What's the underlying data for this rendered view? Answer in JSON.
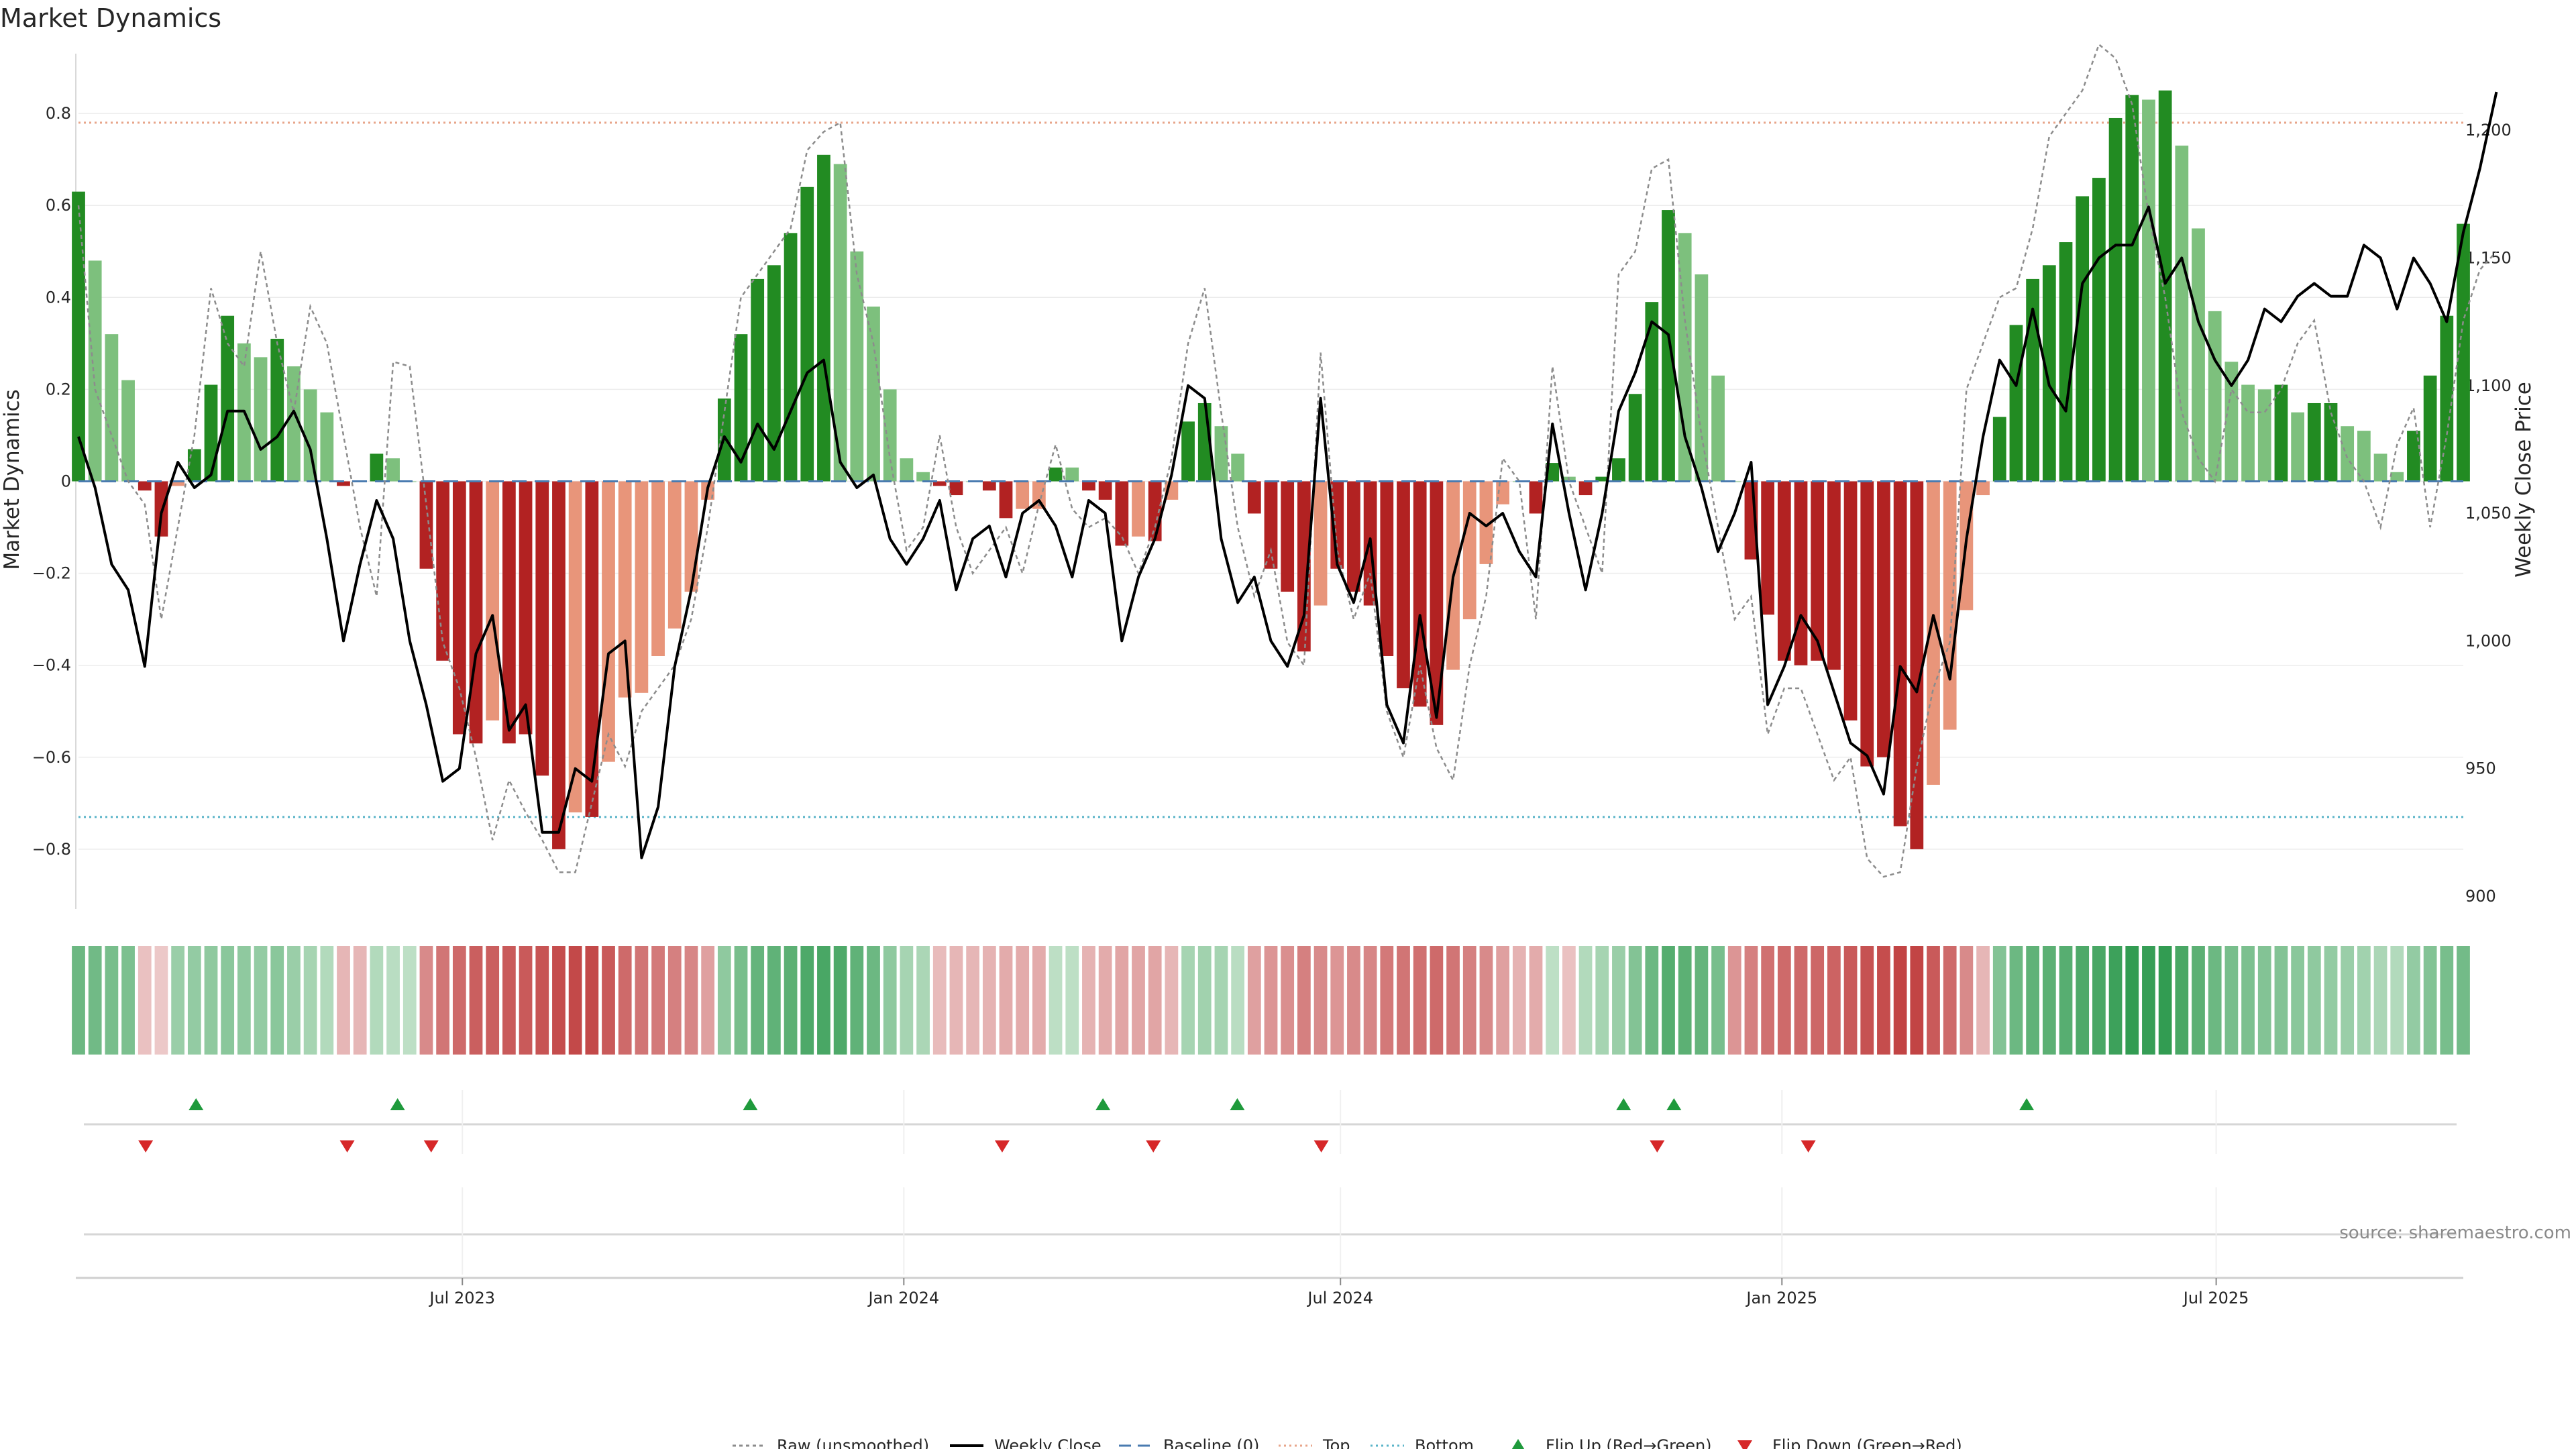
{
  "chart_data": {
    "type": "bar",
    "title": "Market Dynamics",
    "ylabel_left": "Market Dynamics",
    "ylabel_right": "Weekly Close Price",
    "source_text": "source: sharemaestro.com",
    "left_ylim": [
      -0.93,
      0.93
    ],
    "right_ylim": [
      895,
      1230
    ],
    "left_ticks": [
      "0.8",
      "0.6",
      "0.4",
      "0.2",
      "0",
      "−0.2",
      "−0.4",
      "−0.6",
      "−0.8"
    ],
    "right_ticks": [
      "1,200",
      "1,150",
      "1,100",
      "1,050",
      "1,000",
      "950",
      "900"
    ],
    "x_ticks": [
      {
        "label": "Jul 2023",
        "date": "2023-07-01"
      },
      {
        "label": "Jan 2024",
        "date": "2024-01-01"
      },
      {
        "label": "Jul 2024",
        "date": "2024-07-01"
      },
      {
        "label": "Jan 2025",
        "date": "2025-01-01"
      },
      {
        "label": "Jul 2025",
        "date": "2025-07-01"
      }
    ],
    "start_date": "2023-01-22",
    "end_date": "2025-10-12",
    "top_level": 0.78,
    "bottom_level": -0.73,
    "colors": {
      "strong_up": "#228b22",
      "weak_up": "#7dc07d",
      "strong_down": "#b22222",
      "weak_down": "#e8957a",
      "raw": "#8c8c8c",
      "close": "#000000",
      "baseline": "#4a7bb0",
      "top": "#e8a58a",
      "bottom": "#5ab4c8",
      "flip_up": "#1f9a3c",
      "flip_down": "#d62728"
    },
    "bars": [
      {
        "v": 0.63,
        "s": 1
      },
      {
        "v": 0.48,
        "s": 0
      },
      {
        "v": 0.32,
        "s": 0
      },
      {
        "v": 0.22,
        "s": 0
      },
      {
        "v": -0.02,
        "s": 1
      },
      {
        "v": -0.12,
        "s": 1
      },
      {
        "v": -0.01,
        "s": 0
      },
      {
        "v": 0.07,
        "s": 1
      },
      {
        "v": 0.21,
        "s": 1
      },
      {
        "v": 0.36,
        "s": 1
      },
      {
        "v": 0.3,
        "s": 0
      },
      {
        "v": 0.27,
        "s": 0
      },
      {
        "v": 0.31,
        "s": 1
      },
      {
        "v": 0.25,
        "s": 0
      },
      {
        "v": 0.2,
        "s": 0
      },
      {
        "v": 0.15,
        "s": 0
      },
      {
        "v": -0.01,
        "s": 1
      },
      {
        "v": 0.0,
        "s": 0
      },
      {
        "v": 0.06,
        "s": 1
      },
      {
        "v": 0.05,
        "s": 0
      },
      {
        "v": 0.0,
        "s": 0
      },
      {
        "v": -0.19,
        "s": 1
      },
      {
        "v": -0.39,
        "s": 1
      },
      {
        "v": -0.55,
        "s": 1
      },
      {
        "v": -0.57,
        "s": 1
      },
      {
        "v": -0.52,
        "s": 0
      },
      {
        "v": -0.57,
        "s": 1
      },
      {
        "v": -0.55,
        "s": 1
      },
      {
        "v": -0.64,
        "s": 1
      },
      {
        "v": -0.8,
        "s": 1
      },
      {
        "v": -0.72,
        "s": 0
      },
      {
        "v": -0.73,
        "s": 1
      },
      {
        "v": -0.61,
        "s": 0
      },
      {
        "v": -0.47,
        "s": 0
      },
      {
        "v": -0.46,
        "s": 0
      },
      {
        "v": -0.38,
        "s": 0
      },
      {
        "v": -0.32,
        "s": 0
      },
      {
        "v": -0.24,
        "s": 0
      },
      {
        "v": -0.04,
        "s": 0
      },
      {
        "v": 0.18,
        "s": 1
      },
      {
        "v": 0.32,
        "s": 1
      },
      {
        "v": 0.44,
        "s": 1
      },
      {
        "v": 0.47,
        "s": 1
      },
      {
        "v": 0.54,
        "s": 1
      },
      {
        "v": 0.64,
        "s": 1
      },
      {
        "v": 0.71,
        "s": 1
      },
      {
        "v": 0.69,
        "s": 0
      },
      {
        "v": 0.5,
        "s": 0
      },
      {
        "v": 0.38,
        "s": 0
      },
      {
        "v": 0.2,
        "s": 0
      },
      {
        "v": 0.05,
        "s": 0
      },
      {
        "v": 0.02,
        "s": 0
      },
      {
        "v": -0.01,
        "s": 1
      },
      {
        "v": -0.03,
        "s": 1
      },
      {
        "v": 0.0,
        "s": 0
      },
      {
        "v": -0.02,
        "s": 1
      },
      {
        "v": -0.08,
        "s": 1
      },
      {
        "v": -0.06,
        "s": 0
      },
      {
        "v": -0.06,
        "s": 0
      },
      {
        "v": 0.03,
        "s": 1
      },
      {
        "v": 0.03,
        "s": 0
      },
      {
        "v": -0.02,
        "s": 1
      },
      {
        "v": -0.04,
        "s": 1
      },
      {
        "v": -0.14,
        "s": 1
      },
      {
        "v": -0.12,
        "s": 0
      },
      {
        "v": -0.13,
        "s": 1
      },
      {
        "v": -0.04,
        "s": 0
      },
      {
        "v": 0.13,
        "s": 1
      },
      {
        "v": 0.17,
        "s": 1
      },
      {
        "v": 0.12,
        "s": 0
      },
      {
        "v": 0.06,
        "s": 0
      },
      {
        "v": -0.07,
        "s": 1
      },
      {
        "v": -0.19,
        "s": 1
      },
      {
        "v": -0.24,
        "s": 1
      },
      {
        "v": -0.37,
        "s": 1
      },
      {
        "v": -0.27,
        "s": 0
      },
      {
        "v": -0.19,
        "s": 1
      },
      {
        "v": -0.24,
        "s": 1
      },
      {
        "v": -0.27,
        "s": 1
      },
      {
        "v": -0.38,
        "s": 1
      },
      {
        "v": -0.45,
        "s": 1
      },
      {
        "v": -0.49,
        "s": 1
      },
      {
        "v": -0.53,
        "s": 1
      },
      {
        "v": -0.41,
        "s": 0
      },
      {
        "v": -0.3,
        "s": 0
      },
      {
        "v": -0.18,
        "s": 0
      },
      {
        "v": -0.05,
        "s": 0
      },
      {
        "v": 0.0,
        "s": 0
      },
      {
        "v": -0.07,
        "s": 1
      },
      {
        "v": 0.04,
        "s": 1
      },
      {
        "v": 0.01,
        "s": 0
      },
      {
        "v": -0.03,
        "s": 1
      },
      {
        "v": 0.01,
        "s": 1
      },
      {
        "v": 0.05,
        "s": 1
      },
      {
        "v": 0.19,
        "s": 1
      },
      {
        "v": 0.39,
        "s": 1
      },
      {
        "v": 0.59,
        "s": 1
      },
      {
        "v": 0.54,
        "s": 0
      },
      {
        "v": 0.45,
        "s": 0
      },
      {
        "v": 0.23,
        "s": 0
      },
      {
        "v": 0.0,
        "s": 0
      },
      {
        "v": -0.17,
        "s": 1
      },
      {
        "v": -0.29,
        "s": 1
      },
      {
        "v": -0.39,
        "s": 1
      },
      {
        "v": -0.4,
        "s": 1
      },
      {
        "v": -0.39,
        "s": 1
      },
      {
        "v": -0.41,
        "s": 1
      },
      {
        "v": -0.52,
        "s": 1
      },
      {
        "v": -0.62,
        "s": 1
      },
      {
        "v": -0.6,
        "s": 1
      },
      {
        "v": -0.75,
        "s": 1
      },
      {
        "v": -0.8,
        "s": 1
      },
      {
        "v": -0.66,
        "s": 0
      },
      {
        "v": -0.54,
        "s": 0
      },
      {
        "v": -0.28,
        "s": 0
      },
      {
        "v": -0.03,
        "s": 0
      },
      {
        "v": 0.14,
        "s": 1
      },
      {
        "v": 0.34,
        "s": 1
      },
      {
        "v": 0.44,
        "s": 1
      },
      {
        "v": 0.47,
        "s": 1
      },
      {
        "v": 0.52,
        "s": 1
      },
      {
        "v": 0.62,
        "s": 1
      },
      {
        "v": 0.66,
        "s": 1
      },
      {
        "v": 0.79,
        "s": 1
      },
      {
        "v": 0.84,
        "s": 1
      },
      {
        "v": 0.83,
        "s": 0
      },
      {
        "v": 0.85,
        "s": 1
      },
      {
        "v": 0.73,
        "s": 0
      },
      {
        "v": 0.55,
        "s": 0
      },
      {
        "v": 0.37,
        "s": 0
      },
      {
        "v": 0.26,
        "s": 0
      },
      {
        "v": 0.21,
        "s": 0
      },
      {
        "v": 0.2,
        "s": 0
      },
      {
        "v": 0.21,
        "s": 1
      },
      {
        "v": 0.15,
        "s": 0
      },
      {
        "v": 0.17,
        "s": 1
      },
      {
        "v": 0.17,
        "s": 1
      },
      {
        "v": 0.12,
        "s": 0
      },
      {
        "v": 0.11,
        "s": 0
      },
      {
        "v": 0.06,
        "s": 0
      },
      {
        "v": 0.02,
        "s": 0
      },
      {
        "v": 0.11,
        "s": 1
      },
      {
        "v": 0.23,
        "s": 1
      },
      {
        "v": 0.36,
        "s": 1
      },
      {
        "v": 0.56,
        "s": 1
      }
    ],
    "close": [
      1080,
      1060,
      1030,
      1020,
      990,
      1050,
      1070,
      1060,
      1065,
      1090,
      1090,
      1075,
      1080,
      1090,
      1075,
      1040,
      1000,
      1030,
      1055,
      1040,
      1000,
      975,
      945,
      950,
      995,
      1010,
      965,
      975,
      925,
      925,
      950,
      945,
      995,
      1000,
      915,
      935,
      990,
      1020,
      1060,
      1080,
      1070,
      1085,
      1075,
      1090,
      1105,
      1110,
      1070,
      1060,
      1065,
      1040,
      1030,
      1040,
      1055,
      1020,
      1040,
      1045,
      1025,
      1050,
      1055,
      1045,
      1025,
      1055,
      1050,
      1000,
      1025,
      1040,
      1065,
      1100,
      1095,
      1040,
      1015,
      1025,
      1000,
      990,
      1010,
      1095,
      1030,
      1015,
      1040,
      975,
      960,
      1010,
      970,
      1025,
      1050,
      1045,
      1050,
      1035,
      1025,
      1085,
      1050,
      1020,
      1050,
      1090,
      1105,
      1125,
      1120,
      1080,
      1060,
      1035,
      1050,
      1070,
      975,
      990,
      1010,
      1000,
      980,
      960,
      955,
      940,
      990,
      980,
      1010,
      985,
      1040,
      1080,
      1110,
      1100,
      1130,
      1100,
      1090,
      1140,
      1150,
      1155,
      1155,
      1170,
      1140,
      1150,
      1125,
      1110,
      1100,
      1110,
      1130,
      1125,
      1135,
      1140,
      1135,
      1135,
      1155,
      1150,
      1130,
      1150,
      1140,
      1125,
      1160,
      1185,
      1215
    ],
    "raw": [
      0.6,
      0.2,
      0.1,
      0.0,
      -0.05,
      -0.3,
      -0.1,
      0.1,
      0.42,
      0.3,
      0.25,
      0.5,
      0.3,
      0.15,
      0.38,
      0.3,
      0.1,
      -0.1,
      -0.25,
      0.26,
      0.25,
      -0.05,
      -0.35,
      -0.45,
      -0.6,
      -0.78,
      -0.65,
      -0.72,
      -0.78,
      -0.85,
      -0.85,
      -0.7,
      -0.55,
      -0.62,
      -0.5,
      -0.45,
      -0.4,
      -0.3,
      -0.1,
      0.15,
      0.4,
      0.45,
      0.5,
      0.55,
      0.72,
      0.76,
      0.78,
      0.45,
      0.3,
      0.05,
      -0.15,
      -0.1,
      0.1,
      -0.1,
      -0.2,
      -0.15,
      -0.1,
      -0.2,
      -0.05,
      0.08,
      -0.06,
      -0.1,
      -0.08,
      -0.12,
      -0.2,
      -0.1,
      0.05,
      0.3,
      0.42,
      0.15,
      -0.1,
      -0.25,
      -0.15,
      -0.35,
      -0.4,
      0.28,
      -0.15,
      -0.3,
      -0.2,
      -0.5,
      -0.6,
      -0.4,
      -0.58,
      -0.65,
      -0.4,
      -0.25,
      0.05,
      0.0,
      -0.3,
      0.25,
      0.0,
      -0.1,
      -0.2,
      0.45,
      0.5,
      0.68,
      0.7,
      0.35,
      0.1,
      -0.1,
      -0.3,
      -0.25,
      -0.55,
      -0.45,
      -0.45,
      -0.55,
      -0.65,
      -0.6,
      -0.82,
      -0.86,
      -0.85,
      -0.62,
      -0.45,
      -0.35,
      0.2,
      0.3,
      0.4,
      0.42,
      0.55,
      0.75,
      0.8,
      0.85,
      0.95,
      0.92,
      0.82,
      0.58,
      0.4,
      0.15,
      0.05,
      0.0,
      0.2,
      0.15,
      0.15,
      0.2,
      0.3,
      0.35,
      0.15,
      0.05,
      0.0,
      -0.1,
      0.08,
      0.16,
      -0.1,
      0.1,
      0.35,
      0.46,
      0.5
    ],
    "heat": [
      0.55,
      0.53,
      0.5,
      0.48,
      -0.15,
      -0.12,
      0.35,
      0.38,
      0.4,
      0.42,
      0.4,
      0.38,
      0.42,
      0.35,
      0.3,
      0.25,
      -0.2,
      -0.2,
      0.25,
      0.22,
      0.2,
      -0.4,
      -0.5,
      -0.55,
      -0.6,
      -0.6,
      -0.62,
      -0.62,
      -0.65,
      -0.68,
      -0.7,
      -0.7,
      -0.62,
      -0.55,
      -0.5,
      -0.48,
      -0.45,
      -0.42,
      -0.3,
      0.4,
      0.5,
      0.58,
      0.6,
      0.62,
      0.68,
      0.7,
      0.68,
      0.6,
      0.55,
      0.4,
      0.3,
      0.28,
      -0.18,
      -0.2,
      -0.2,
      -0.22,
      -0.25,
      -0.25,
      -0.25,
      0.2,
      0.2,
      -0.22,
      -0.25,
      -0.28,
      -0.28,
      -0.28,
      -0.2,
      0.3,
      0.32,
      0.3,
      0.22,
      -0.3,
      -0.35,
      -0.38,
      -0.45,
      -0.4,
      -0.35,
      -0.4,
      -0.42,
      -0.48,
      -0.5,
      -0.52,
      -0.55,
      -0.5,
      -0.45,
      -0.4,
      -0.3,
      -0.22,
      -0.25,
      0.2,
      -0.15,
      0.25,
      0.3,
      0.35,
      0.45,
      0.55,
      0.65,
      0.62,
      0.58,
      0.5,
      -0.35,
      -0.45,
      -0.52,
      -0.55,
      -0.55,
      -0.56,
      -0.58,
      -0.62,
      -0.66,
      -0.68,
      -0.72,
      -0.72,
      -0.62,
      -0.55,
      -0.4,
      -0.2,
      0.45,
      0.55,
      0.6,
      0.62,
      0.64,
      0.68,
      0.7,
      0.75,
      0.8,
      0.78,
      0.8,
      0.7,
      0.62,
      0.55,
      0.5,
      0.48,
      0.45,
      0.45,
      0.42,
      0.4,
      0.38,
      0.35,
      0.32,
      0.28,
      0.25,
      0.38,
      0.45,
      0.5,
      0.52
    ],
    "flip_up_dates": [
      "2023-03-12",
      "2023-06-04",
      "2023-10-29",
      "2024-03-24",
      "2024-05-19",
      "2024-10-27",
      "2024-11-17",
      "2025-04-13"
    ],
    "flip_down_dates": [
      "2023-02-19",
      "2023-05-14",
      "2023-06-18",
      "2024-02-11",
      "2024-04-14",
      "2024-06-23",
      "2024-11-10",
      "2025-01-12"
    ],
    "legend": [
      {
        "label": "Raw (unsmoothed)",
        "kind": "dotted-line"
      },
      {
        "label": "Weekly Close",
        "kind": "solid-line"
      },
      {
        "label": "Baseline (0)",
        "kind": "dashed-line"
      },
      {
        "label": "Top",
        "kind": "dotted-line-top"
      },
      {
        "label": "Bottom",
        "kind": "dotted-line-bottom"
      },
      {
        "label": "Flip Up (Red→Green)",
        "kind": "up-triangle"
      },
      {
        "label": "Flip Down (Green→Red)",
        "kind": "down-triangle"
      }
    ]
  }
}
